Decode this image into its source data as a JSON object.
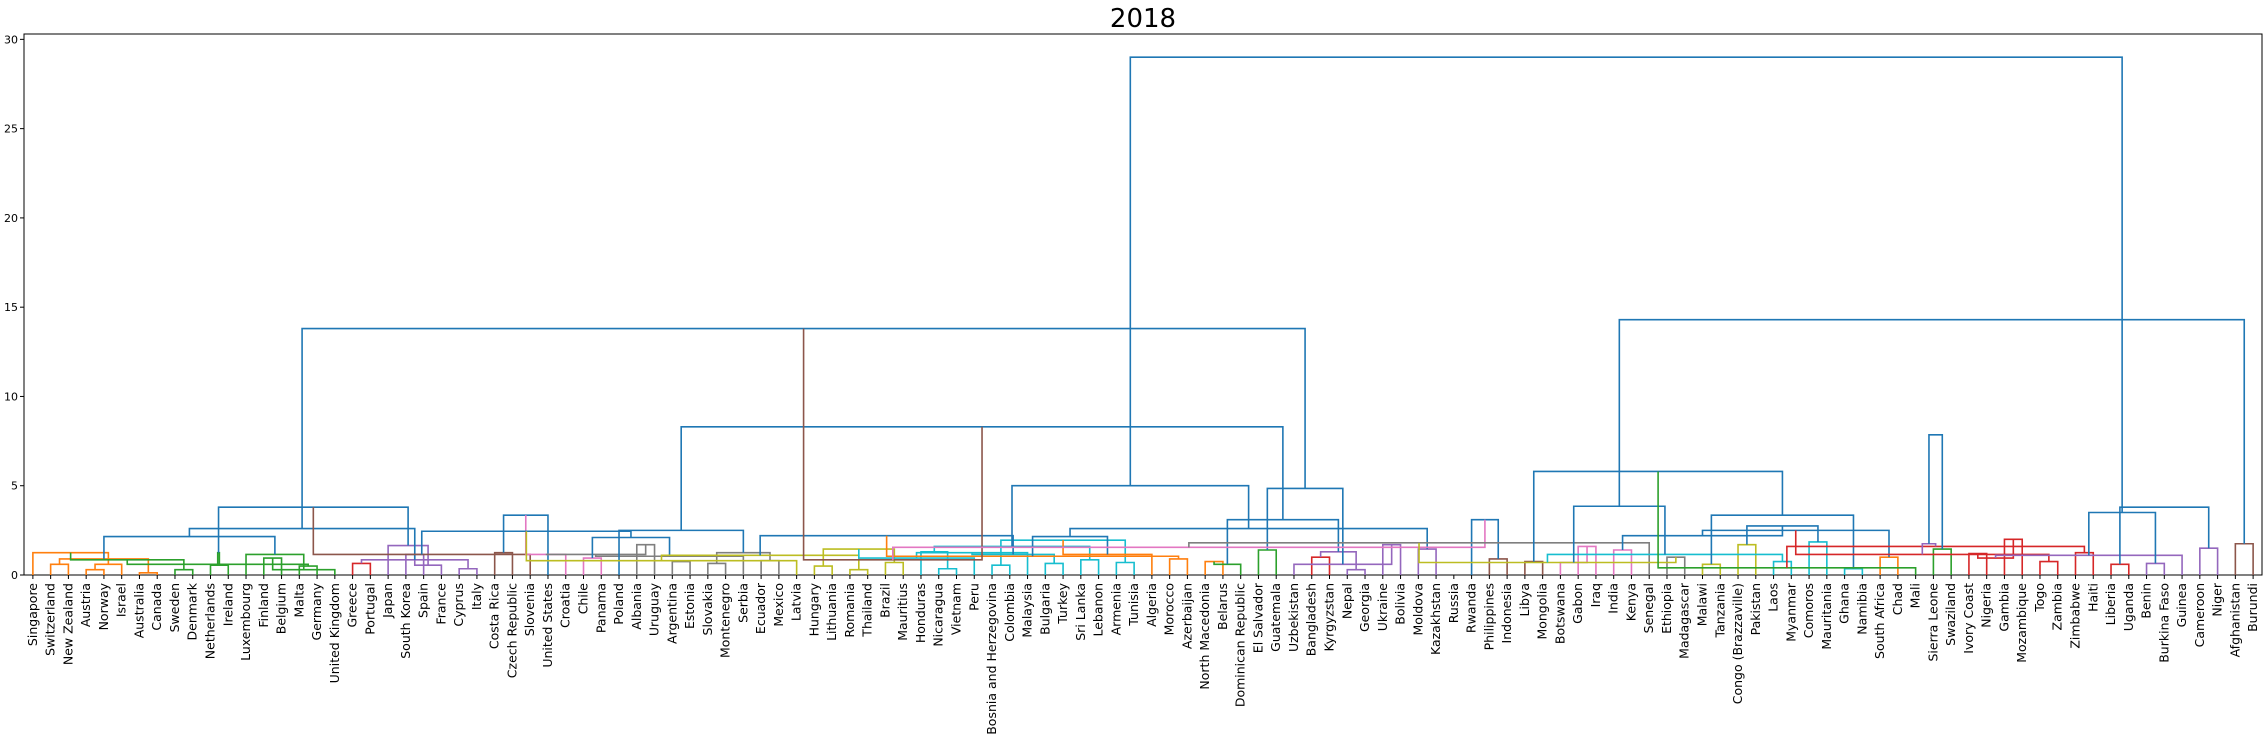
{
  "chart_data": {
    "type": "dendrogram",
    "title": "2018",
    "ylim": [
      0,
      30.3
    ],
    "yticks": [
      0,
      5,
      10,
      15,
      20,
      25,
      30
    ],
    "leaves": [
      "Singapore",
      "Switzerland",
      "New Zealand",
      "Austria",
      "Norway",
      "Israel",
      "Australia",
      "Canada",
      "Sweden",
      "Denmark",
      "Netherlands",
      "Ireland",
      "Luxembourg",
      "Finland",
      "Belgium",
      "Malta",
      "Germany",
      "United Kingdom",
      "Greece",
      "Portugal",
      "Japan",
      "South Korea",
      "Spain",
      "France",
      "Cyprus",
      "Italy",
      "Costa Rica",
      "Czech Republic",
      "Slovenia",
      "United States",
      "Croatia",
      "Chile",
      "Panama",
      "Poland",
      "Albania",
      "Uruguay",
      "Argentina",
      "Estonia",
      "Slovakia",
      "Montenegro",
      "Serbia",
      "Ecuador",
      "Mexico",
      "Latvia",
      "Hungary",
      "Lithuania",
      "Romania",
      "Thailand",
      "Brazil",
      "Mauritius",
      "Honduras",
      "Nicaragua",
      "Vietnam",
      "Peru",
      "Bosnia and Herzegovina",
      "Colombia",
      "Malaysia",
      "Bulgaria",
      "Turkey",
      "Sri Lanka",
      "Lebanon",
      "Armenia",
      "Tunisia",
      "Algeria",
      "Morocco",
      "Azerbaijan",
      "North Macedonia",
      "Belarus",
      "Dominican Republic",
      "El Salvador",
      "Guatemala",
      "Uzbekistan",
      "Bangladesh",
      "Kyrgyzstan",
      "Nepal",
      "Georgia",
      "Ukraine",
      "Bolivia",
      "Moldova",
      "Kazakhstan",
      "Russia",
      "Rwanda",
      "Philippines",
      "Indonesia",
      "Libya",
      "Mongolia",
      "Botswana",
      "Gabon",
      "Iraq",
      "India",
      "Kenya",
      "Senegal",
      "Ethiopia",
      "Madagascar",
      "Malawi",
      "Tanzania",
      "Congo (Brazzaville)",
      "Pakistan",
      "Laos",
      "Myanmar",
      "Comoros",
      "Mauritania",
      "Ghana",
      "Namibia",
      "South Africa",
      "Chad",
      "Mali",
      "Sierra Leone",
      "Swaziland",
      "Ivory Coast",
      "Nigeria",
      "Gambia",
      "Mozambique",
      "Togo",
      "Zambia",
      "Zimbabwe",
      "Haiti",
      "Liberia",
      "Uganda",
      "Benin",
      "Burkina Faso",
      "Guinea",
      "Cameroon",
      "Niger",
      "Afghanistan",
      "Burundi"
    ],
    "cluster_colors": {
      "C0": "#1f77b4",
      "C1": "#ff7f0e",
      "C2": "#2ca02c",
      "C3": "#d62728",
      "C4": "#9467bd",
      "C5": "#8c564b",
      "C6": "#e377c2",
      "C7": "#7f7f7f",
      "C8": "#bcbd22",
      "C9": "#17becf"
    },
    "merges": [
      [
        1,
        2,
        0.6,
        "C1"
      ],
      [
        3,
        4,
        0.3,
        "C1"
      ],
      [
        6,
        7,
        0.12,
        "C1"
      ],
      [
        5,
        "m2",
        0.6,
        "C1"
      ],
      [
        "m1",
        "m3",
        0.9,
        "C1"
      ],
      [
        0,
        "m4",
        1.25,
        "C1"
      ],
      [
        8,
        9,
        0.3,
        "C2"
      ],
      [
        10,
        11,
        0.55,
        "C2"
      ],
      [
        "m6",
        "m7",
        0.85,
        "C2"
      ],
      [
        13,
        14,
        0.95,
        "C2"
      ],
      [
        15,
        16,
        0.5,
        "C2"
      ],
      [
        17,
        "m10",
        0.3,
        "C2"
      ],
      [
        "m9",
        "m11",
        0.6,
        "C2"
      ],
      [
        12,
        "m12",
        1.15,
        "C2"
      ],
      [
        "m8",
        "m13",
        1.25,
        "C2"
      ],
      [
        "m5",
        "m14",
        2.15,
        "C0"
      ],
      [
        18,
        19,
        0.65,
        "C3"
      ],
      [
        21,
        22,
        1.15,
        "C4"
      ],
      [
        24,
        25,
        0.35,
        "C4"
      ],
      [
        23,
        "m18",
        0.55,
        "C4"
      ],
      [
        "m17",
        "m19",
        0.85,
        "C4"
      ],
      [
        20,
        "m20",
        1.65,
        "C4"
      ],
      [
        "m16",
        "m21",
        2.6,
        "C0"
      ],
      [
        "m15",
        "m22",
        3.8,
        "C0"
      ],
      [
        26,
        27,
        1.25,
        "C5"
      ],
      [
        28,
        "m24",
        1.15,
        "C5"
      ],
      [
        29,
        "m25",
        3.35,
        "C0"
      ],
      [
        31,
        32,
        0.95,
        "C6"
      ],
      [
        30,
        "m27",
        1.15,
        "C6"
      ],
      [
        34,
        35,
        1.7,
        "C7"
      ],
      [
        36,
        37,
        0.75,
        "C7"
      ],
      [
        38,
        39,
        0.65,
        "C7"
      ],
      [
        "m29",
        "m30",
        1.15,
        "C7"
      ],
      [
        41,
        42,
        0.8,
        "C7"
      ],
      [
        40,
        "m33",
        1.05,
        "C7"
      ],
      [
        "m32",
        "m34",
        1.25,
        "C7"
      ],
      [
        "m28",
        "m35",
        2.1,
        "C0"
      ],
      [
        33,
        "m36",
        2.5,
        "C0"
      ],
      [
        "m26",
        "m37",
        2.45,
        "C0"
      ],
      [
        44,
        45,
        0.5,
        "C8"
      ],
      [
        43,
        "m39",
        0.8,
        "C8"
      ],
      [
        46,
        47,
        0.3,
        "C8"
      ],
      [
        48,
        49,
        0.7,
        "C8"
      ],
      [
        "m41",
        "m42",
        1.1,
        "C8"
      ],
      [
        "m40",
        "m43",
        1.45,
        "C8"
      ],
      [
        51,
        52,
        0.35,
        "C9"
      ],
      [
        54,
        55,
        0.55,
        "C9"
      ],
      [
        53,
        "m45",
        0.95,
        "C9"
      ],
      [
        50,
        "m46",
        1.3,
        "C9"
      ],
      [
        57,
        58,
        0.65,
        "C9"
      ],
      [
        56,
        "m48",
        1.25,
        "C9"
      ],
      [
        59,
        60,
        0.85,
        "C9"
      ],
      [
        61,
        62,
        0.7,
        "C9"
      ],
      [
        "m50",
        "m51",
        1.15,
        "C9"
      ],
      [
        "m49",
        "m52",
        1.6,
        "C9"
      ],
      [
        "m47",
        "m53",
        1.95,
        "C9"
      ],
      [
        "m44",
        "m54",
        2.2,
        "C0"
      ],
      [
        64,
        65,
        0.9,
        "C1"
      ],
      [
        63,
        "m56",
        1.15,
        "C1"
      ],
      [
        66,
        67,
        0.75,
        "C1"
      ],
      [
        "m57",
        "m58",
        1.05,
        "C1"
      ],
      [
        69,
        70,
        1.4,
        "C2"
      ],
      [
        68,
        "m60",
        0.6,
        "C2"
      ],
      [
        "m59",
        "m61",
        2.15,
        "C0"
      ],
      [
        72,
        73,
        1.0,
        "C3"
      ],
      [
        74,
        75,
        0.3,
        "C4"
      ],
      [
        76,
        77,
        1.7,
        "C4"
      ],
      [
        78,
        79,
        1.45,
        "C4"
      ],
      [
        "m65",
        "m66",
        1.3,
        "C4"
      ],
      [
        71,
        "m67",
        0.6,
        "C4"
      ],
      [
        "m64",
        "m68",
        2.6,
        "C0"
      ],
      [
        "m63",
        "m69",
        3.1,
        "C0"
      ],
      [
        "m62",
        "m70",
        4.85,
        "C0"
      ],
      [
        "m55",
        "m71",
        5.0,
        "C0"
      ],
      [
        "m38",
        "m72",
        8.3,
        "C0"
      ],
      [
        "m23",
        "m73",
        13.8,
        "C0"
      ],
      [
        82,
        83,
        0.9,
        "C5"
      ],
      [
        84,
        85,
        0.75,
        "C5"
      ],
      [
        "m75",
        "m76",
        0.85,
        "C5"
      ],
      [
        81,
        "m77",
        3.1,
        "C0"
      ],
      [
        87,
        88,
        1.6,
        "C6"
      ],
      [
        89,
        90,
        1.4,
        "C6"
      ],
      [
        "m79",
        "m80",
        1.55,
        "C6"
      ],
      [
        86,
        "m81",
        0.7,
        "C6"
      ],
      [
        92,
        93,
        1.0,
        "C7"
      ],
      [
        91,
        "m83",
        1.8,
        "C7"
      ],
      [
        94,
        95,
        0.6,
        "C8"
      ],
      [
        96,
        97,
        1.7,
        "C8"
      ],
      [
        "m85",
        "m86",
        0.7,
        "C8"
      ],
      [
        98,
        99,
        0.75,
        "C9"
      ],
      [
        100,
        101,
        1.85,
        "C9"
      ],
      [
        102,
        103,
        0.35,
        "C9"
      ],
      [
        "m89",
        "m90",
        1.15,
        "C9"
      ],
      [
        "m88",
        "m91",
        2.75,
        "C0"
      ],
      [
        "m87",
        "m92",
        3.35,
        "C0"
      ],
      [
        "m84",
        "m93",
        3.85,
        "C0"
      ],
      [
        "m82",
        "m94",
        2.2,
        "C0"
      ],
      [
        "m78",
        "m95",
        5.8,
        "C0"
      ],
      [
        104,
        105,
        1.0,
        "C1"
      ],
      [
        107,
        108,
        1.45,
        "C2"
      ],
      [
        106,
        "m98",
        0.4,
        "C2"
      ],
      [
        "m97",
        "m99",
        2.5,
        "C0"
      ],
      [
        109,
        110,
        1.2,
        "C3"
      ],
      [
        111,
        112,
        2.0,
        "C3"
      ],
      [
        113,
        114,
        0.75,
        "C3"
      ],
      [
        115,
        116,
        1.25,
        "C3"
      ],
      [
        117,
        118,
        0.6,
        "C3"
      ],
      [
        "m103",
        "m104",
        0.95,
        "C3"
      ],
      [
        "m102",
        "m105",
        1.15,
        "C3"
      ],
      [
        "m101",
        "m106",
        1.6,
        "C3"
      ],
      [
        119,
        120,
        0.65,
        "C4"
      ],
      [
        121,
        "m108",
        1.1,
        "C4"
      ],
      [
        122,
        123,
        1.5,
        "C4"
      ],
      [
        "m109",
        "m110",
        1.75,
        "C4"
      ],
      [
        124,
        125,
        1.75,
        "C5"
      ],
      [
        "m111",
        "m112",
        3.5,
        "C0"
      ],
      [
        "m107",
        "m113",
        3.8,
        "C0"
      ],
      [
        "m100",
        "m114",
        7.85,
        "C0"
      ],
      [
        "m96",
        "m115",
        14.3,
        "C0"
      ],
      [
        "m74",
        "m116",
        29.0,
        "C0"
      ]
    ]
  }
}
